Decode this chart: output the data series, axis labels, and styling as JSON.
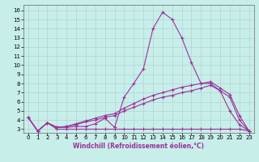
{
  "background_color": "#c8eeea",
  "grid_color": "#aacccc",
  "line_color": "#993399",
  "xlabel": "Windchill (Refroidissement éolien,°C)",
  "x_ticks": [
    0,
    1,
    2,
    3,
    4,
    5,
    6,
    7,
    8,
    9,
    10,
    11,
    12,
    13,
    14,
    15,
    16,
    17,
    18,
    19,
    20,
    21,
    22,
    23
  ],
  "y_ticks": [
    3,
    4,
    5,
    6,
    7,
    8,
    9,
    10,
    11,
    12,
    13,
    14,
    15,
    16
  ],
  "ylim": [
    2.6,
    16.6
  ],
  "xlim": [
    -0.5,
    23.5
  ],
  "series1": [
    4.3,
    2.8,
    3.7,
    3.2,
    3.2,
    3.3,
    3.3,
    3.6,
    4.2,
    3.2,
    6.5,
    8.0,
    9.6,
    14.0,
    15.8,
    15.0,
    13.0,
    10.3,
    8.0,
    8.0,
    7.2,
    5.0,
    3.5,
    2.8
  ],
  "series2": [
    4.3,
    2.8,
    3.7,
    3.0,
    3.0,
    3.0,
    3.0,
    3.0,
    3.0,
    3.0,
    3.0,
    3.0,
    3.0,
    3.0,
    3.0,
    3.0,
    3.0,
    3.0,
    3.0,
    3.0,
    3.0,
    3.0,
    3.0,
    2.8
  ],
  "series3": [
    4.3,
    2.8,
    3.7,
    3.2,
    3.3,
    3.5,
    3.8,
    4.0,
    4.3,
    4.5,
    5.0,
    5.4,
    5.8,
    6.2,
    6.5,
    6.7,
    7.0,
    7.2,
    7.5,
    7.8,
    7.2,
    6.5,
    4.0,
    2.8
  ],
  "series4": [
    4.3,
    2.8,
    3.7,
    3.2,
    3.3,
    3.6,
    3.9,
    4.2,
    4.5,
    4.7,
    5.3,
    5.8,
    6.3,
    6.7,
    7.0,
    7.3,
    7.6,
    7.8,
    8.0,
    8.2,
    7.5,
    6.8,
    4.5,
    2.8
  ],
  "marker_size": 3.0,
  "line_width": 0.8,
  "tick_fontsize": 5.0,
  "xlabel_fontsize": 5.5
}
